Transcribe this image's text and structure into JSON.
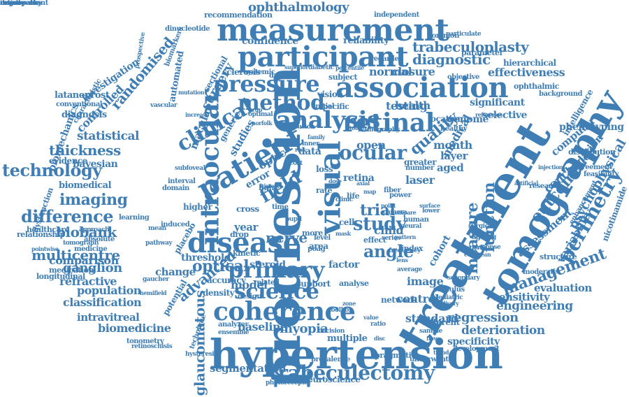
{
  "colors": {
    "word": "#3f7eb5",
    "background": "#ffffff"
  },
  "words": [
    "progression",
    "treatment",
    "hypertension",
    "tomography",
    "measurement",
    "participant",
    "visual",
    "association",
    "retinal",
    "patient",
    "disease",
    "intraocular",
    "coherence",
    "pressure",
    "analysis",
    "clinical",
    "primary",
    "trabeculectomy",
    "perimetry",
    "field",
    "technology",
    "method",
    "science",
    "difference",
    "ocular",
    "study",
    "management",
    "trabeculoplasty",
    "optical",
    "angle",
    "glaucomatous",
    "measure",
    "function",
    "outcome",
    "imaging",
    "diagnostic",
    "quality",
    "multicentre",
    "thickness",
    "biobank",
    "randomised",
    "nerve",
    "advanced",
    "regression",
    "trial",
    "deterioration",
    "ophthalmology",
    "statistical",
    "ganglion",
    "model",
    "classification",
    "comparison",
    "population",
    "engineering",
    "psychophysical",
    "myopia",
    "sensitivity",
    "deviation",
    "biomedicine",
    "controlled",
    "refractive",
    "conclusion",
    "computer",
    "medical",
    "normal",
    "closure",
    "effectiveness",
    "significant",
    "genome",
    "health",
    "laser",
    "child",
    "open",
    "baseline",
    "image",
    "standard",
    "intravitreal",
    "variability",
    "assessment",
    "segmentation",
    "year",
    "confidence",
    "reliability",
    "recommendation",
    "dinucleotide",
    "latanoprost",
    "investigation",
    "conventional",
    "diagnosis",
    "bayesian",
    "evidence",
    "biomedical",
    "relationship",
    "healthcare",
    "medication",
    "longitudinal",
    "tonometry",
    "retinoschisis",
    "biomechanics",
    "characteristic",
    "dysfunction",
    "automated",
    "surgery",
    "macular",
    "sectional",
    "generic",
    "studies",
    "testing",
    "selective",
    "month",
    "aged",
    "layer",
    "retina",
    "cohort",
    "factor",
    "control",
    "network",
    "different",
    "multiple",
    "pragmatic",
    "specificity",
    "development",
    "prevalence",
    "underwent",
    "photoreceptor",
    "neuroscience",
    "threshold",
    "optic",
    "data",
    "error",
    "cross",
    "drop",
    "area",
    "level",
    "poag",
    "kinetic",
    "steroid",
    "related",
    "support",
    "analyse",
    "design",
    "density",
    "accuracy",
    "analyzer",
    "ensemble",
    "hysteresis",
    "technique",
    "change",
    "potential",
    "placebo",
    "higher",
    "induced",
    "interval",
    "domain",
    "light",
    "time",
    "more",
    "vision",
    "specific",
    "initial",
    "regarded",
    "common",
    "independent",
    "parameter",
    "particulate",
    "objective",
    "hierarchical",
    "ophthalmic",
    "background",
    "intelligence",
    "phenotyping",
    "distribution",
    "agreement",
    "feasibility",
    "structure",
    "moderate",
    "evaluation",
    "nicotinamide",
    "enhancement",
    "mutation",
    "vascular",
    "increase",
    "damage",
    "superior",
    "diabetic",
    "percentile",
    "subject",
    "sclerosis",
    "systemic",
    "fusion",
    "location",
    "healthy",
    "reference",
    "inner",
    "greater",
    "number",
    "loss",
    "rate",
    "fiber",
    "power",
    "life",
    "cell",
    "effect",
    "human",
    "neural",
    "series",
    "index",
    "average",
    "stimulus",
    "secondary",
    "paediatric",
    "decision",
    "delivery",
    "european",
    "ageing",
    "surgical",
    "injection",
    "artificial",
    "research",
    "biomarkers",
    "prospective",
    "pointwise",
    "medicine",
    "tomograph",
    "learning",
    "approach",
    "absolute",
    "pathway",
    "gaucher",
    "hemifield",
    "mean",
    "risk",
    "visit",
    "total",
    "retinography",
    "cup",
    "optimal",
    "norfolk",
    "subfoveal",
    "family",
    "cost",
    "pupil",
    "mask",
    "frequency",
    "lens",
    "eye",
    "history",
    "dose",
    "clinic",
    "axial",
    "map",
    "point",
    "camera",
    "compare",
    "surface",
    "lower",
    "patterns",
    "response",
    "pattern",
    "toolbox",
    "zone",
    "value",
    "ratio",
    "disc",
    "sample",
    "flow",
    "trend",
    "exam",
    "retinopathy",
    "neuropathy",
    "improvement",
    "result",
    "degree"
  ]
}
